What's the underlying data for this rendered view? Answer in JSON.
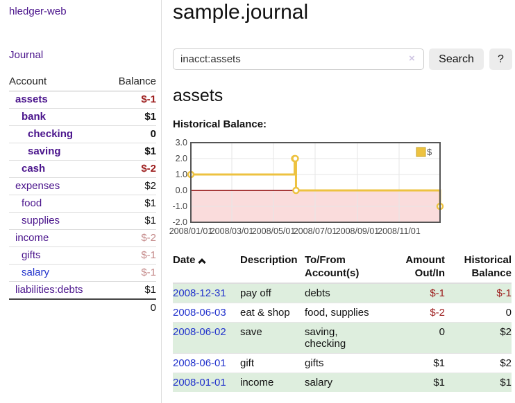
{
  "colors": {
    "link_purple": "#4a148c",
    "link_blue": "#2233cc",
    "negative_red": "#9c1c1c",
    "negative_soft_red": "#c48989",
    "row_green": "#deeede",
    "button_gray": "#ececec",
    "series_yellow": "#edc240"
  },
  "sidebar": {
    "app_title": "hledger-web",
    "journal_link": "Journal",
    "accounts_table": {
      "headers": {
        "account": "Account",
        "balance": "Balance"
      },
      "rows": [
        {
          "name": "assets",
          "indent": 1,
          "bold": true,
          "balance": "$-1",
          "balance_style": "neg"
        },
        {
          "name": "bank",
          "indent": 2,
          "bold": true,
          "balance": "$1",
          "balance_style": "pos"
        },
        {
          "name": "checking",
          "indent": 3,
          "bold": true,
          "balance": "0",
          "balance_style": "pos"
        },
        {
          "name": "saving",
          "indent": 3,
          "bold": true,
          "balance": "$1",
          "balance_style": "pos"
        },
        {
          "name": "cash",
          "indent": 2,
          "bold": true,
          "balance": "$-2",
          "balance_style": "neg"
        },
        {
          "name": "expenses",
          "indent": 1,
          "bold": false,
          "balance": "$2",
          "balance_style": "pos"
        },
        {
          "name": "food",
          "indent": 2,
          "bold": false,
          "balance": "$1",
          "balance_style": "pos"
        },
        {
          "name": "supplies",
          "indent": 2,
          "bold": false,
          "balance": "$1",
          "balance_style": "pos"
        },
        {
          "name": "income",
          "indent": 1,
          "bold": false,
          "balance": "$-2",
          "balance_style": "neg-soft"
        },
        {
          "name": "gifts",
          "indent": 2,
          "bold": false,
          "balance": "$-1",
          "balance_style": "neg-soft"
        },
        {
          "name": "salary",
          "indent": 2,
          "bold": false,
          "balance": "$-1",
          "balance_style": "neg-soft",
          "link_style": "blue"
        },
        {
          "name": "liabilities:debts",
          "indent": 1,
          "bold": false,
          "balance": "$1",
          "balance_style": "pos"
        }
      ],
      "total": "0"
    }
  },
  "main": {
    "page_title": "sample.journal",
    "search": {
      "value": "inacct:assets",
      "clear_icon": "×",
      "search_button": "Search",
      "help_button": "?"
    },
    "account_heading": "assets",
    "chart_heading": "Historical Balance:"
  },
  "chart_data": {
    "type": "line",
    "step": true,
    "title": "Historical Balance:",
    "xlabel": "",
    "ylabel": "",
    "x_range": [
      "2008-01-01",
      "2008-12-31"
    ],
    "ylim": [
      -2,
      3
    ],
    "grid": true,
    "legend_position": "top-right",
    "y_ticks": [
      {
        "v": 3,
        "label": "3.0"
      },
      {
        "v": 2,
        "label": "2.0"
      },
      {
        "v": 1,
        "label": "1.0"
      },
      {
        "v": 0,
        "label": "0.0"
      },
      {
        "v": -1,
        "label": "-1.0"
      },
      {
        "v": -2,
        "label": "-2.0"
      }
    ],
    "x_ticks": [
      {
        "date": "2008-01-01",
        "label": "2008/01/01"
      },
      {
        "date": "2008-03-01",
        "label": "2008/03/01"
      },
      {
        "date": "2008-05-01",
        "label": "2008/05/01"
      },
      {
        "date": "2008-07-01",
        "label": "2008/07/01"
      },
      {
        "date": "2008-09-01",
        "label": "2008/09/01"
      },
      {
        "date": "2008-11-01",
        "label": "2008/11/01"
      }
    ],
    "series": [
      {
        "name": "$",
        "color": "#edc240",
        "points": [
          {
            "date": "2008-01-01",
            "y": 1
          },
          {
            "date": "2008-06-01",
            "y": 2
          },
          {
            "date": "2008-06-02",
            "y": 2
          },
          {
            "date": "2008-06-03",
            "y": 0
          },
          {
            "date": "2008-12-31",
            "y": -1
          }
        ]
      }
    ],
    "zero_line_color": "#8b0000",
    "negative_region_color": "#fadcdc",
    "grid_color": "#e6e6e6",
    "border_color": "#545454",
    "tick_label_color": "#444444"
  },
  "transactions": {
    "headers": {
      "date": "Date",
      "description": "Description",
      "accounts_line1": "To/From",
      "accounts_line2": "Account(s)",
      "amount_line1": "Amount",
      "amount_line2": "Out/In",
      "balance_line1": "Historical",
      "balance_line2": "Balance"
    },
    "rows": [
      {
        "date": "2008-12-31",
        "description": "pay off",
        "accounts": "debts",
        "amount": "$-1",
        "amount_style": "neg",
        "balance": "$-1",
        "balance_style": "neg"
      },
      {
        "date": "2008-06-03",
        "description": "eat & shop",
        "accounts": "food, supplies",
        "amount": "$-2",
        "amount_style": "neg",
        "balance": "0",
        "balance_style": "pos"
      },
      {
        "date": "2008-06-02",
        "description": "save",
        "accounts": "saving, checking",
        "amount": "0",
        "amount_style": "pos",
        "balance": "$2",
        "balance_style": "pos"
      },
      {
        "date": "2008-06-01",
        "description": "gift",
        "accounts": "gifts",
        "amount": "$1",
        "amount_style": "pos",
        "balance": "$2",
        "balance_style": "pos"
      },
      {
        "date": "2008-01-01",
        "description": "income",
        "accounts": "salary",
        "amount": "$1",
        "amount_style": "pos",
        "balance": "$1",
        "balance_style": "pos"
      }
    ]
  }
}
